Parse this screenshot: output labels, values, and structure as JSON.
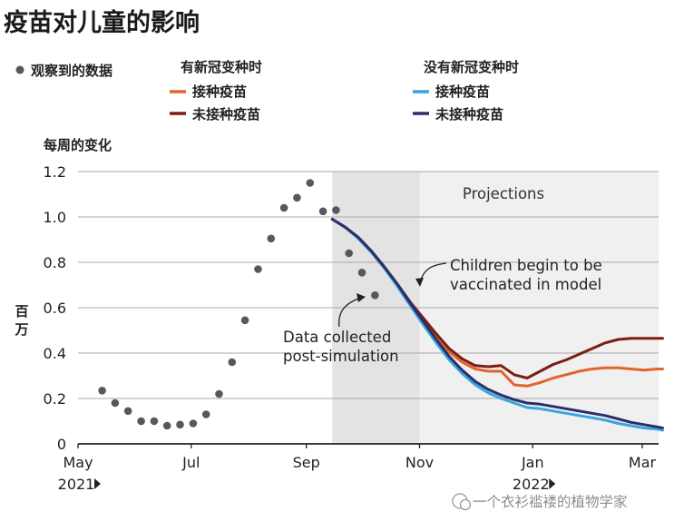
{
  "chart_data": {
    "type": "line",
    "title": "疫苗对儿童的影响",
    "ylabel_top": "每周的变化",
    "ylabel_unit": "百万",
    "ylim": [
      0,
      1.2
    ],
    "yticks": [
      "0",
      "0.2",
      "0.4",
      "0.6",
      "0.8",
      "1.0",
      "1.2"
    ],
    "yticks_values": [
      0,
      0.2,
      0.4,
      0.6,
      0.8,
      1.0,
      1.2
    ],
    "xlim": [
      "2021-05-01",
      "2022-03-10"
    ],
    "xticks": [
      {
        "date": "2021-05-01",
        "label": "May",
        "sub": "2021"
      },
      {
        "date": "2021-07-01",
        "label": "Jul",
        "sub": ""
      },
      {
        "date": "2021-09-01",
        "label": "Sep",
        "sub": ""
      },
      {
        "date": "2021-11-01",
        "label": "Nov",
        "sub": ""
      },
      {
        "date": "2022-01-01",
        "label": "Jan",
        "sub": "2022"
      },
      {
        "date": "2022-03-01",
        "label": "Mar",
        "sub": ""
      }
    ],
    "legend": {
      "observed": "观察到的数据",
      "group1_title": "有新冠变种时",
      "group2_title": "没有新冠变种时"
    },
    "shaded_regions": [
      {
        "from": "2021-09-15",
        "to": "2021-11-01",
        "color": "#e3e3e3"
      },
      {
        "from": "2021-11-01",
        "to": "2022-03-12",
        "color": "#f0f0f0",
        "label": "Projections"
      }
    ],
    "annotations": [
      {
        "lines": [
          "Children begin to be",
          "vaccinated in model"
        ]
      },
      {
        "lines": [
          "Data collected",
          "post-simulation"
        ]
      }
    ],
    "observed": {
      "name": "观察到的数据",
      "color": "#55585e",
      "x": [
        "2021-05-14",
        "2021-05-21",
        "2021-05-28",
        "2021-06-04",
        "2021-06-11",
        "2021-06-18",
        "2021-06-25",
        "2021-07-02",
        "2021-07-09",
        "2021-07-16",
        "2021-07-23",
        "2021-07-30",
        "2021-08-06",
        "2021-08-13",
        "2021-08-20",
        "2021-08-27",
        "2021-09-03",
        "2021-09-10",
        "2021-09-17",
        "2021-09-24",
        "2021-10-01",
        "2021-10-08"
      ],
      "y": [
        0.235,
        0.18,
        0.145,
        0.1,
        0.1,
        0.08,
        0.085,
        0.09,
        0.13,
        0.22,
        0.36,
        0.545,
        0.77,
        0.905,
        1.04,
        1.085,
        1.15,
        1.025,
        1.03,
        0.84,
        0.755,
        0.655
      ]
    },
    "series": [
      {
        "name": "接种疫苗",
        "group": "有新冠变种时",
        "color": "#e4632a",
        "x": [
          "2021-09-15",
          "2021-09-22",
          "2021-09-29",
          "2021-10-06",
          "2021-10-13",
          "2021-10-20",
          "2021-10-27",
          "2021-11-03",
          "2021-11-10",
          "2021-11-17",
          "2021-11-24",
          "2021-12-01",
          "2021-12-08",
          "2021-12-15",
          "2021-12-22",
          "2021-12-29",
          "2022-01-05",
          "2022-01-12",
          "2022-01-19",
          "2022-01-26",
          "2022-02-02",
          "2022-02-09",
          "2022-02-16",
          "2022-02-23",
          "2022-03-02",
          "2022-03-09",
          "2022-03-12"
        ],
        "y": [
          0.99,
          0.955,
          0.905,
          0.845,
          0.775,
          0.7,
          0.62,
          0.545,
          0.475,
          0.405,
          0.36,
          0.33,
          0.32,
          0.32,
          0.26,
          0.255,
          0.27,
          0.29,
          0.305,
          0.32,
          0.33,
          0.335,
          0.335,
          0.33,
          0.325,
          0.33,
          0.33
        ]
      },
      {
        "name": "未接种疫苗",
        "group": "有新冠变种时",
        "color": "#7c1d15",
        "x": [
          "2021-09-15",
          "2021-09-22",
          "2021-09-29",
          "2021-10-06",
          "2021-10-13",
          "2021-10-20",
          "2021-10-27",
          "2021-11-03",
          "2021-11-10",
          "2021-11-17",
          "2021-11-24",
          "2021-12-01",
          "2021-12-08",
          "2021-12-15",
          "2021-12-22",
          "2021-12-29",
          "2022-01-05",
          "2022-01-12",
          "2022-01-19",
          "2022-01-26",
          "2022-02-02",
          "2022-02-09",
          "2022-02-16",
          "2022-02-23",
          "2022-03-02",
          "2022-03-09",
          "2022-03-12"
        ],
        "y": [
          0.99,
          0.955,
          0.91,
          0.85,
          0.78,
          0.705,
          0.625,
          0.555,
          0.485,
          0.42,
          0.375,
          0.345,
          0.34,
          0.345,
          0.305,
          0.29,
          0.32,
          0.35,
          0.37,
          0.395,
          0.42,
          0.445,
          0.46,
          0.465,
          0.465,
          0.465,
          0.465
        ]
      },
      {
        "name": "接种疫苗",
        "group": "没有新冠变种时",
        "color": "#39a6dc",
        "x": [
          "2021-09-15",
          "2021-09-22",
          "2021-09-29",
          "2021-10-06",
          "2021-10-13",
          "2021-10-20",
          "2021-10-27",
          "2021-11-03",
          "2021-11-10",
          "2021-11-17",
          "2021-11-24",
          "2021-12-01",
          "2021-12-08",
          "2021-12-15",
          "2021-12-22",
          "2021-12-29",
          "2022-01-05",
          "2022-01-12",
          "2022-01-19",
          "2022-01-26",
          "2022-02-02",
          "2022-02-09",
          "2022-02-16",
          "2022-02-23",
          "2022-03-02",
          "2022-03-09",
          "2022-03-12"
        ],
        "y": [
          0.99,
          0.955,
          0.905,
          0.845,
          0.775,
          0.695,
          0.61,
          0.525,
          0.445,
          0.37,
          0.31,
          0.26,
          0.225,
          0.2,
          0.18,
          0.16,
          0.155,
          0.145,
          0.135,
          0.125,
          0.115,
          0.105,
          0.09,
          0.08,
          0.07,
          0.065,
          0.06
        ]
      },
      {
        "name": "未接种疫苗",
        "group": "没有新冠变种时",
        "color": "#2b2e6b",
        "x": [
          "2021-09-15",
          "2021-09-22",
          "2021-09-29",
          "2021-10-06",
          "2021-10-13",
          "2021-10-20",
          "2021-10-27",
          "2021-11-03",
          "2021-11-10",
          "2021-11-17",
          "2021-11-24",
          "2021-12-01",
          "2021-12-08",
          "2021-12-15",
          "2021-12-22",
          "2021-12-29",
          "2022-01-05",
          "2022-01-12",
          "2022-01-19",
          "2022-01-26",
          "2022-02-02",
          "2022-02-09",
          "2022-02-16",
          "2022-02-23",
          "2022-03-02",
          "2022-03-09",
          "2022-03-12"
        ],
        "y": [
          0.99,
          0.955,
          0.91,
          0.85,
          0.78,
          0.705,
          0.62,
          0.54,
          0.46,
          0.385,
          0.325,
          0.275,
          0.24,
          0.215,
          0.195,
          0.18,
          0.175,
          0.165,
          0.155,
          0.145,
          0.135,
          0.125,
          0.11,
          0.095,
          0.085,
          0.075,
          0.07
        ]
      }
    ],
    "grid": "horizontal"
  },
  "watermark": "一个衣衫褴褛的植物学家"
}
